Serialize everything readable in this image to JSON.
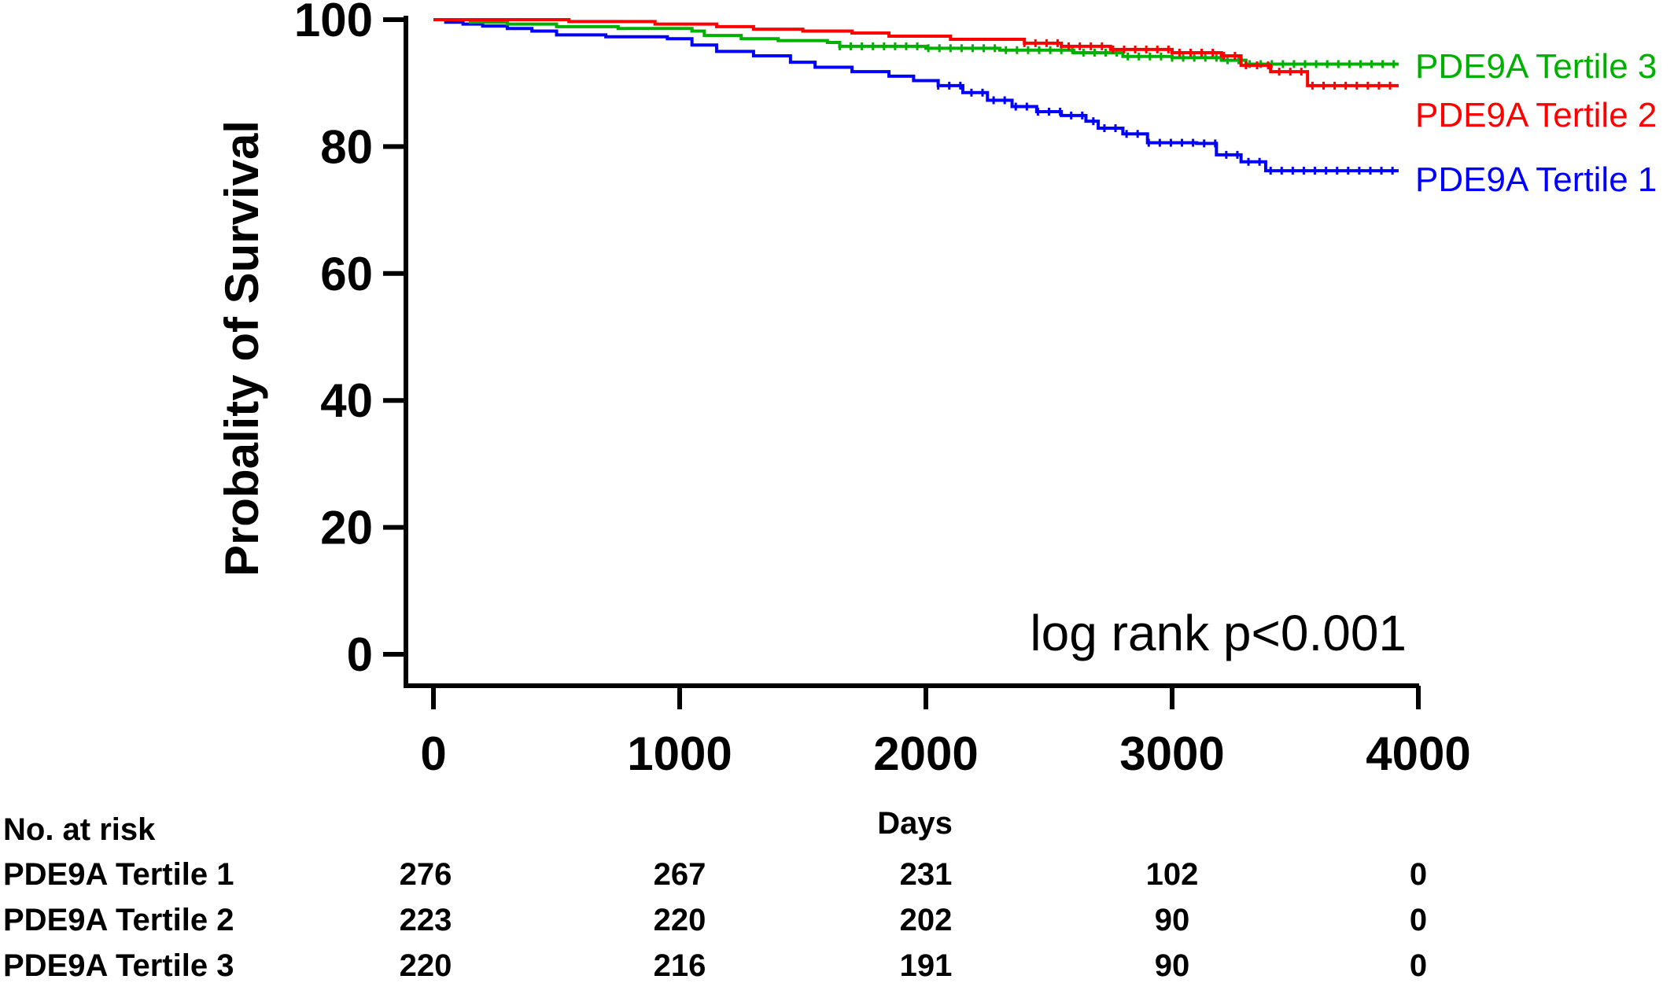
{
  "chart_data": {
    "type": "line",
    "subtype": "kaplan-meier step",
    "title": "",
    "xlabel": "Days",
    "ylabel": "Probality of  Survival",
    "xlim": [
      0,
      4000
    ],
    "ylim": [
      0,
      100
    ],
    "x_ticks": [
      0,
      1000,
      2000,
      3000,
      4000
    ],
    "y_ticks": [
      0,
      20,
      40,
      60,
      80,
      100
    ],
    "grid": false,
    "legend_placement": "right (inline labels at line ends)",
    "annotation": "log rank p<0.001",
    "series": [
      {
        "name": "PDE9A Tertile 1",
        "color": "#0000ff",
        "points": [
          [
            0,
            100
          ],
          [
            50,
            99.6
          ],
          [
            120,
            99.3
          ],
          [
            200,
            99.0
          ],
          [
            300,
            98.6
          ],
          [
            400,
            98.2
          ],
          [
            500,
            97.6
          ],
          [
            700,
            97.3
          ],
          [
            950,
            97.0
          ],
          [
            1050,
            96.0
          ],
          [
            1150,
            95.0
          ],
          [
            1300,
            94.3
          ],
          [
            1450,
            93.3
          ],
          [
            1550,
            92.5
          ],
          [
            1700,
            91.8
          ],
          [
            1850,
            91.1
          ],
          [
            1950,
            90.4
          ],
          [
            2050,
            89.6
          ],
          [
            2150,
            88.5
          ],
          [
            2250,
            87.3
          ],
          [
            2350,
            86.3
          ],
          [
            2450,
            85.5
          ],
          [
            2550,
            84.9
          ],
          [
            2650,
            84.0
          ],
          [
            2700,
            82.9
          ],
          [
            2800,
            82.0
          ],
          [
            2900,
            80.6
          ],
          [
            3100,
            80.5
          ],
          [
            3180,
            78.7
          ],
          [
            3280,
            77.6
          ],
          [
            3380,
            76.2
          ],
          [
            3920,
            76.2
          ]
        ]
      },
      {
        "name": "PDE9A Tertile 2",
        "color": "#ff0000",
        "points": [
          [
            0,
            100
          ],
          [
            200,
            100
          ],
          [
            550,
            99.7
          ],
          [
            900,
            99.3
          ],
          [
            1150,
            98.9
          ],
          [
            1300,
            98.5
          ],
          [
            1500,
            98.2
          ],
          [
            1700,
            97.9
          ],
          [
            1850,
            97.4
          ],
          [
            2100,
            96.9
          ],
          [
            2400,
            96.3
          ],
          [
            2550,
            95.8
          ],
          [
            2750,
            95.3
          ],
          [
            3000,
            94.8
          ],
          [
            3200,
            94.3
          ],
          [
            3280,
            92.8
          ],
          [
            3400,
            91.8
          ],
          [
            3550,
            89.6
          ],
          [
            3920,
            89.6
          ]
        ]
      },
      {
        "name": "PDE9A Tertile 3",
        "color": "#00b000",
        "points": [
          [
            0,
            100
          ],
          [
            150,
            99.6
          ],
          [
            300,
            99.3
          ],
          [
            500,
            98.9
          ],
          [
            750,
            98.6
          ],
          [
            1050,
            98.2
          ],
          [
            1100,
            97.5
          ],
          [
            1250,
            97.0
          ],
          [
            1400,
            96.7
          ],
          [
            1600,
            96.4
          ],
          [
            1650,
            95.8
          ],
          [
            2000,
            95.5
          ],
          [
            2300,
            95.2
          ],
          [
            2600,
            94.8
          ],
          [
            2800,
            94.2
          ],
          [
            3000,
            94.0
          ],
          [
            3200,
            93.6
          ],
          [
            3300,
            93.0
          ],
          [
            3920,
            93.0
          ]
        ]
      }
    ],
    "risk_table": {
      "heading": "No. at risk",
      "time_points": [
        0,
        1000,
        2000,
        3000,
        4000
      ],
      "rows": [
        {
          "label": "PDE9A Tertile 1",
          "values": [
            "276",
            "267",
            "231",
            "102",
            "0"
          ]
        },
        {
          "label": "PDE9A Tertile 2",
          "values": [
            "223",
            "220",
            "202",
            "90",
            "0"
          ]
        },
        {
          "label": "PDE9A Tertile 3",
          "values": [
            "220",
            "216",
            "191",
            "90",
            "0"
          ]
        }
      ]
    }
  }
}
